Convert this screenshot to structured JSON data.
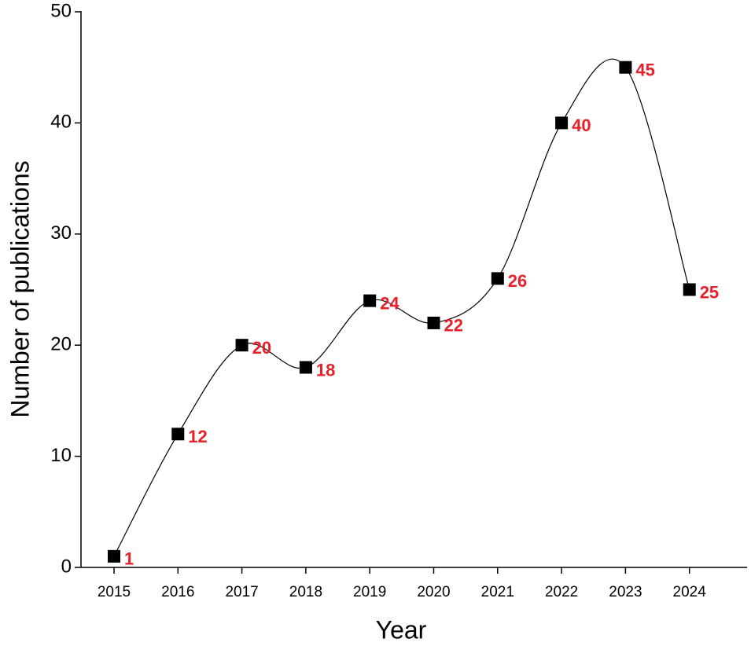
{
  "chart_data": {
    "type": "line",
    "x_label": "Year",
    "y_label": "Number of publications",
    "categories": [
      "2015",
      "2016",
      "2017",
      "2018",
      "2019",
      "2020",
      "2021",
      "2022",
      "2023",
      "2024"
    ],
    "values": [
      1,
      12,
      20,
      18,
      24,
      22,
      26,
      40,
      45,
      25
    ],
    "color": "#000000",
    "label_color": "#e8202a",
    "ylim": [
      0,
      50
    ],
    "yticks": [
      0,
      10,
      20,
      30,
      40,
      50
    ],
    "grid": false,
    "smooth": true
  }
}
